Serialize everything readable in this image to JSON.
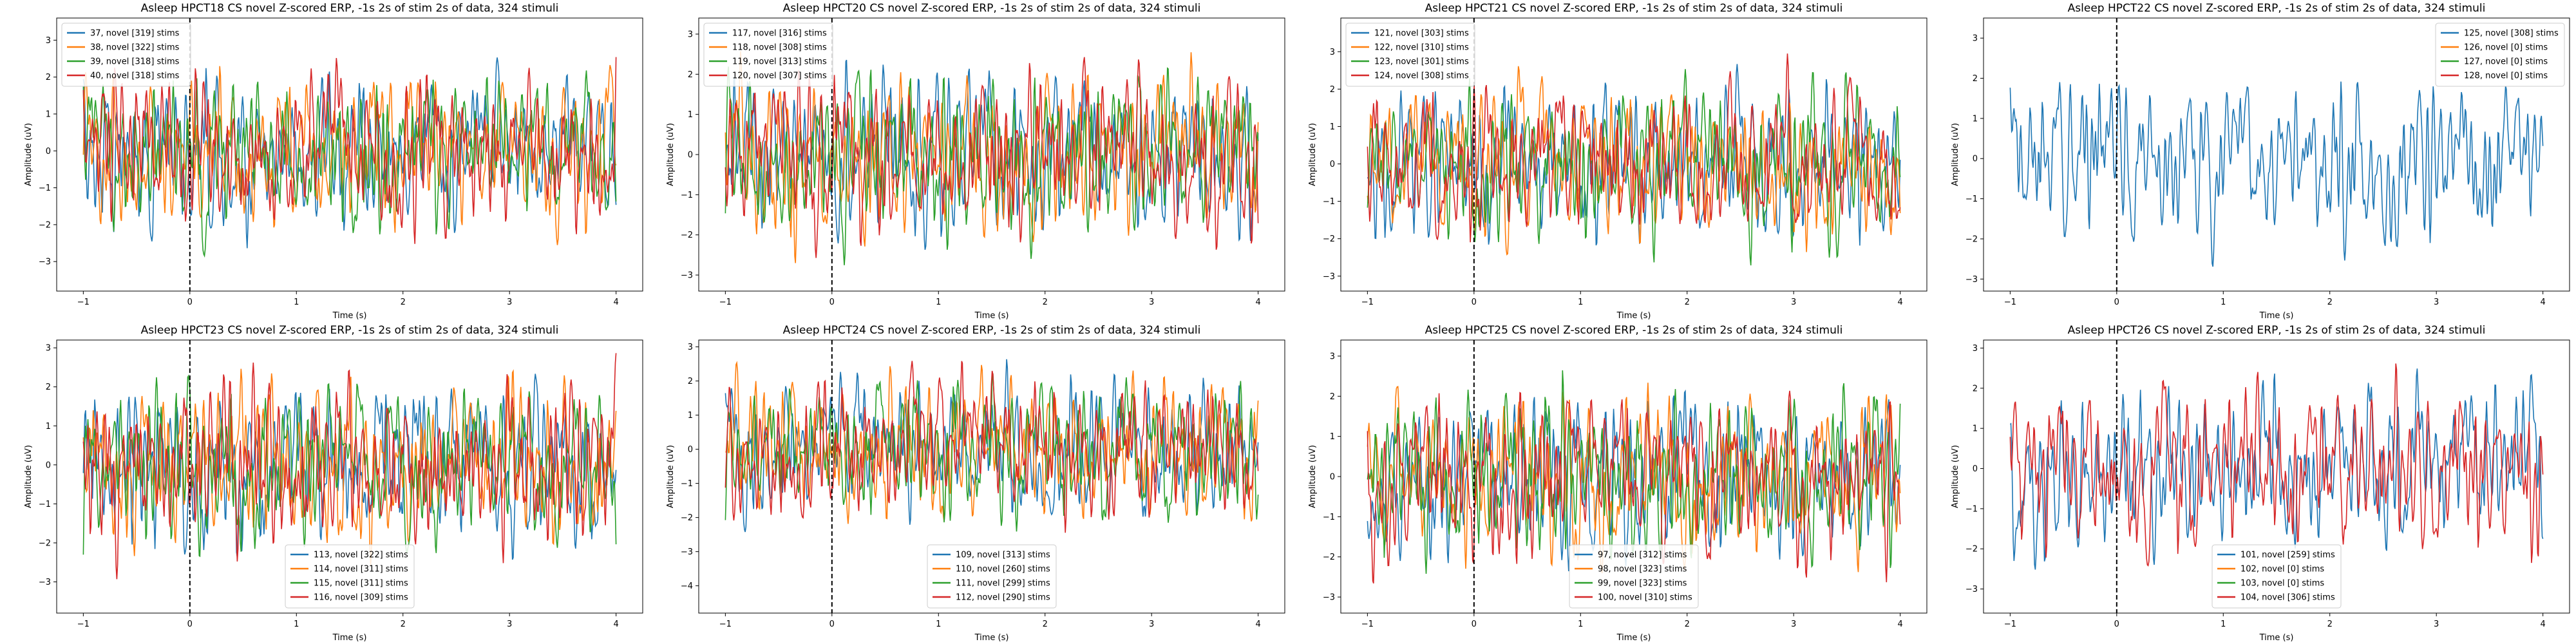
{
  "figure": {
    "colors": [
      "#1f77b4",
      "#ff7f0e",
      "#2ca02c",
      "#d62728"
    ]
  },
  "chart_data": [
    {
      "type": "line",
      "title": "Asleep HPCT18 CS novel Z-scored ERP, -1s 2s of stim 2s of data, 324 stimuli",
      "xlabel": "Time (s)",
      "ylabel": "Amplitude (uV)",
      "xlim": [
        -1.25,
        4.25
      ],
      "ylim": [
        -3.8,
        3.6
      ],
      "xticks": [
        -1,
        0,
        1,
        2,
        3,
        4
      ],
      "yticks": [
        -3,
        -2,
        -1,
        0,
        1,
        2,
        3
      ],
      "legend_loc": "upper-left",
      "stim_line_x": 0,
      "series": [
        {
          "name": "37, novel [319] stims",
          "empty": false
        },
        {
          "name": "38, novel [322] stims",
          "empty": false
        },
        {
          "name": "39, novel [318] stims",
          "empty": false
        },
        {
          "name": "40, novel [318] stims",
          "empty": false
        }
      ]
    },
    {
      "type": "line",
      "title": "Asleep HPCT20 CS novel Z-scored ERP, -1s 2s of stim 2s of data, 324 stimuli",
      "xlabel": "Time (s)",
      "ylabel": "Amplitude (uV)",
      "xlim": [
        -1.25,
        4.25
      ],
      "ylim": [
        -3.4,
        3.4
      ],
      "xticks": [
        -1,
        0,
        1,
        2,
        3,
        4
      ],
      "yticks": [
        -3,
        -2,
        -1,
        0,
        1,
        2,
        3
      ],
      "legend_loc": "upper-left",
      "stim_line_x": 0,
      "series": [
        {
          "name": "117, novel [316] stims",
          "empty": false
        },
        {
          "name": "118, novel [308] stims",
          "empty": false
        },
        {
          "name": "119, novel [313] stims",
          "empty": false
        },
        {
          "name": "120, novel [307] stims",
          "empty": false
        }
      ]
    },
    {
      "type": "line",
      "title": "Asleep HPCT21 CS novel Z-scored ERP, -1s 2s of stim 2s of data, 324 stimuli",
      "xlabel": "Time (s)",
      "ylabel": "Amplitude (uV)",
      "xlim": [
        -1.25,
        4.25
      ],
      "ylim": [
        -3.4,
        3.9
      ],
      "xticks": [
        -1,
        0,
        1,
        2,
        3,
        4
      ],
      "yticks": [
        -3,
        -2,
        -1,
        0,
        1,
        2,
        3
      ],
      "legend_loc": "upper-left",
      "stim_line_x": 0,
      "series": [
        {
          "name": "121, novel [303] stims",
          "empty": false
        },
        {
          "name": "122, novel [310] stims",
          "empty": false
        },
        {
          "name": "123, novel [301] stims",
          "empty": false
        },
        {
          "name": "124, novel [308] stims",
          "empty": false
        }
      ]
    },
    {
      "type": "line",
      "title": "Asleep HPCT22 CS novel Z-scored ERP, -1s 2s of stim 2s of data, 324 stimuli",
      "xlabel": "Time (s)",
      "ylabel": "Amplitude (uV)",
      "xlim": [
        -1.25,
        4.25
      ],
      "ylim": [
        -3.3,
        3.5
      ],
      "xticks": [
        -1,
        0,
        1,
        2,
        3,
        4
      ],
      "yticks": [
        -3,
        -2,
        -1,
        0,
        1,
        2,
        3
      ],
      "legend_loc": "upper-right",
      "stim_line_x": 0,
      "series": [
        {
          "name": "125, novel [308] stims",
          "empty": false
        },
        {
          "name": "126, novel [0] stims",
          "empty": true
        },
        {
          "name": "127, novel [0] stims",
          "empty": true
        },
        {
          "name": "128, novel [0] stims",
          "empty": true
        }
      ]
    },
    {
      "type": "line",
      "title": "Asleep HPCT23 CS novel Z-scored ERP, -1s 2s of stim 2s of data, 324 stimuli",
      "xlabel": "Time (s)",
      "ylabel": "Amplitude (uV)",
      "xlim": [
        -1.25,
        4.25
      ],
      "ylim": [
        -3.8,
        3.2
      ],
      "xticks": [
        -1,
        0,
        1,
        2,
        3,
        4
      ],
      "yticks": [
        -3,
        -2,
        -1,
        0,
        1,
        2,
        3
      ],
      "legend_loc": "lower-center",
      "stim_line_x": 0,
      "series": [
        {
          "name": "113, novel [322] stims",
          "empty": false
        },
        {
          "name": "114, novel [311] stims",
          "empty": false
        },
        {
          "name": "115, novel [311] stims",
          "empty": false
        },
        {
          "name": "116, novel [309] stims",
          "empty": false
        }
      ]
    },
    {
      "type": "line",
      "title": "Asleep HPCT24 CS novel Z-scored ERP, -1s 2s of stim 2s of data, 324 stimuli",
      "xlabel": "Time (s)",
      "ylabel": "Amplitude (uV)",
      "xlim": [
        -1.25,
        4.25
      ],
      "ylim": [
        -4.8,
        3.2
      ],
      "xticks": [
        -1,
        0,
        1,
        2,
        3,
        4
      ],
      "yticks": [
        -4,
        -3,
        -2,
        -1,
        0,
        1,
        2,
        3
      ],
      "legend_loc": "lower-center",
      "stim_line_x": 0,
      "series": [
        {
          "name": "109, novel [313] stims",
          "empty": false
        },
        {
          "name": "110, novel [260] stims",
          "empty": false
        },
        {
          "name": "111, novel [299] stims",
          "empty": false
        },
        {
          "name": "112, novel [290] stims",
          "empty": false
        }
      ]
    },
    {
      "type": "line",
      "title": "Asleep HPCT25 CS novel Z-scored ERP, -1s 2s of stim 2s of data, 324 stimuli",
      "xlabel": "Time (s)",
      "ylabel": "Amplitude (uV)",
      "xlim": [
        -1.25,
        4.25
      ],
      "ylim": [
        -3.4,
        3.4
      ],
      "xticks": [
        -1,
        0,
        1,
        2,
        3,
        4
      ],
      "yticks": [
        -3,
        -2,
        -1,
        0,
        1,
        2,
        3
      ],
      "legend_loc": "lower-center",
      "stim_line_x": 0,
      "series": [
        {
          "name": "97, novel [312] stims",
          "empty": false
        },
        {
          "name": "98, novel [323] stims",
          "empty": false
        },
        {
          "name": "99, novel [323] stims",
          "empty": false
        },
        {
          "name": "100, novel [310] stims",
          "empty": false
        }
      ]
    },
    {
      "type": "line",
      "title": "Asleep HPCT26 CS novel Z-scored ERP, -1s 2s of stim 2s of data, 324 stimuli",
      "xlabel": "Time (s)",
      "ylabel": "Amplitude (uV)",
      "xlim": [
        -1.25,
        4.25
      ],
      "ylim": [
        -3.6,
        3.2
      ],
      "xticks": [
        -1,
        0,
        1,
        2,
        3,
        4
      ],
      "yticks": [
        -3,
        -2,
        -1,
        0,
        1,
        2,
        3
      ],
      "legend_loc": "lower-center",
      "stim_line_x": 0,
      "series": [
        {
          "name": "101, novel [259] stims",
          "empty": false
        },
        {
          "name": "102, novel [0] stims",
          "empty": true
        },
        {
          "name": "103, novel [0] stims",
          "empty": true
        },
        {
          "name": "104, novel [306] stims",
          "empty": false
        }
      ]
    }
  ]
}
